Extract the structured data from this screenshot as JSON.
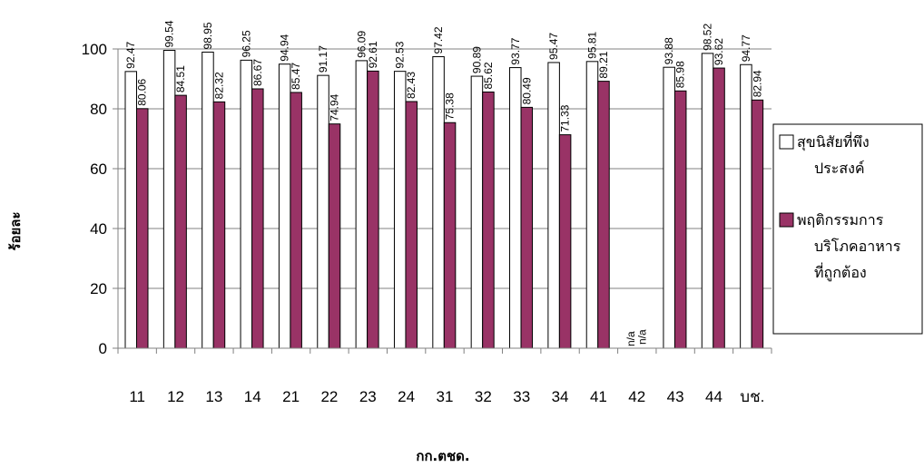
{
  "chart_data": {
    "type": "bar",
    "xlabel": "กก.ตชด.",
    "ylabel": "ร้อยละ",
    "ylim": [
      0,
      100
    ],
    "yticks": [
      0,
      20,
      40,
      60,
      80,
      100
    ],
    "grid": "horizontal",
    "legend_position": "right",
    "categories": [
      "11",
      "12",
      "13",
      "14",
      "21",
      "22",
      "23",
      "24",
      "31",
      "32",
      "33",
      "34",
      "41",
      "42",
      "43",
      "44",
      "บช."
    ],
    "series": [
      {
        "name": "สุขนิสัยที่พึงประสงค์",
        "legend_lines": [
          "สุขนิสัยที่พึง",
          "ประสงค์"
        ],
        "color": "#ffffff",
        "values": [
          92.47,
          99.54,
          98.95,
          96.25,
          94.94,
          91.17,
          96.09,
          92.53,
          97.42,
          90.89,
          93.77,
          95.47,
          95.81,
          null,
          93.88,
          98.52,
          94.77
        ],
        "labels": [
          "92.47",
          "99.54",
          "98.95",
          "96.25",
          "94.94",
          "91.17",
          "96.09",
          "92.53",
          "97.42",
          "90.89",
          "93.77",
          "95.47",
          "95.81",
          "n/a",
          "93.88",
          "98.52",
          "94.77"
        ]
      },
      {
        "name": "พฤติกรรมการบริโภคอาหารที่ถูกต้อง",
        "legend_lines": [
          "พฤติกรรมการ",
          "บริโภคอาหาร",
          "ที่ถูกต้อง"
        ],
        "color": "#993366",
        "values": [
          80.06,
          84.51,
          82.32,
          86.67,
          85.47,
          74.94,
          92.61,
          82.43,
          75.38,
          85.62,
          80.49,
          71.33,
          89.21,
          null,
          85.98,
          93.62,
          82.94
        ],
        "labels": [
          "80.06",
          "84.51",
          "82.32",
          "86.67",
          "85.47",
          "74.94",
          "92.61",
          "82.43",
          "75.38",
          "85.62",
          "80.49",
          "71.33",
          "89.21",
          "n/a",
          "85.98",
          "93.62",
          "82.94"
        ]
      }
    ]
  }
}
